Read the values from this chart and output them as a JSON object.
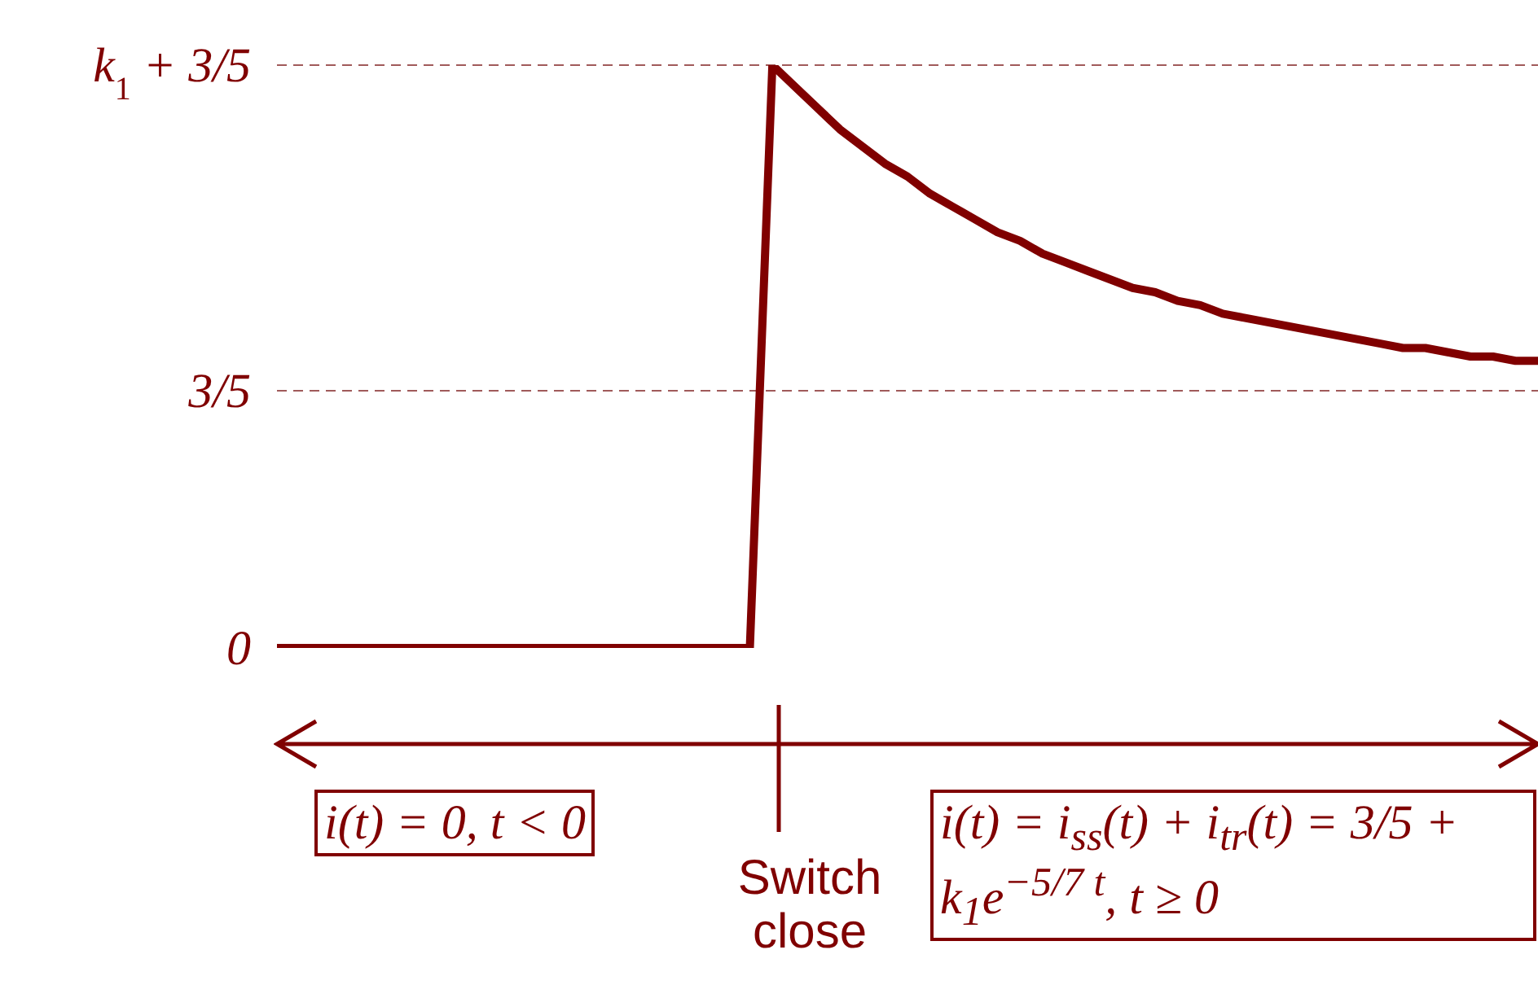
{
  "chart_data": {
    "type": "line",
    "categories": [
      null,
      null,
      null,
      null,
      null,
      null,
      null,
      null,
      null,
      null,
      null,
      null,
      null,
      null,
      null,
      null,
      null,
      null,
      null,
      null,
      null,
      null,
      null,
      null,
      null,
      null,
      null,
      null,
      null,
      null,
      null,
      null,
      null,
      null,
      null,
      null,
      null,
      null,
      null,
      null,
      null,
      null,
      null,
      null,
      null,
      null,
      null,
      null,
      null,
      null,
      null,
      null,
      null,
      null,
      null,
      null,
      null
    ],
    "series": [
      {
        "color": "#800000",
        "values": [
          0,
          0,
          0,
          0,
          0,
          0,
          0,
          0,
          0,
          0,
          0,
          0,
          0,
          0,
          0,
          0,
          0,
          0,
          0,
          0,
          0,
          0,
          1.36,
          1.31,
          1.26,
          1.21,
          1.17,
          1.13,
          1.1,
          1.06,
          1.03,
          1.0,
          0.97,
          0.95,
          0.92,
          0.9,
          0.88,
          0.86,
          0.84,
          0.83,
          0.81,
          0.8,
          0.78,
          0.77,
          0.76,
          0.75,
          0.74,
          0.73,
          0.72,
          0.71,
          0.7,
          0.7,
          0.69,
          0.68,
          0.68,
          0.67,
          0.67
        ]
      }
    ],
    "ylim": [
      0,
      1.36
    ],
    "yticks": [
      0,
      {
        "value": 0.6,
        "label": "3/5"
      },
      {
        "value": 1.36,
        "label": "k$_{1}$ + 3/5"
      }
    ],
    "tick_labels": "y",
    "grid": false,
    "marker": "none",
    "line_style": "solid",
    "ref_lines": [
      {
        "axis": "y",
        "value": 0.6,
        "color": "#a05a5a",
        "line_style": "dashed"
      },
      {
        "axis": "y",
        "value": 1.36,
        "color": "#a05a5a",
        "line_style": "dashed"
      }
    ],
    "annotations": [
      "i(t) = 0, t < 0",
      "Switch close",
      "i(t) = i$_{ss}$(t) + i$_{tr}$(t)  = 3/5 + k$_{1}$e$^{−5/7 t}$, t ≥ 0"
    ]
  }
}
